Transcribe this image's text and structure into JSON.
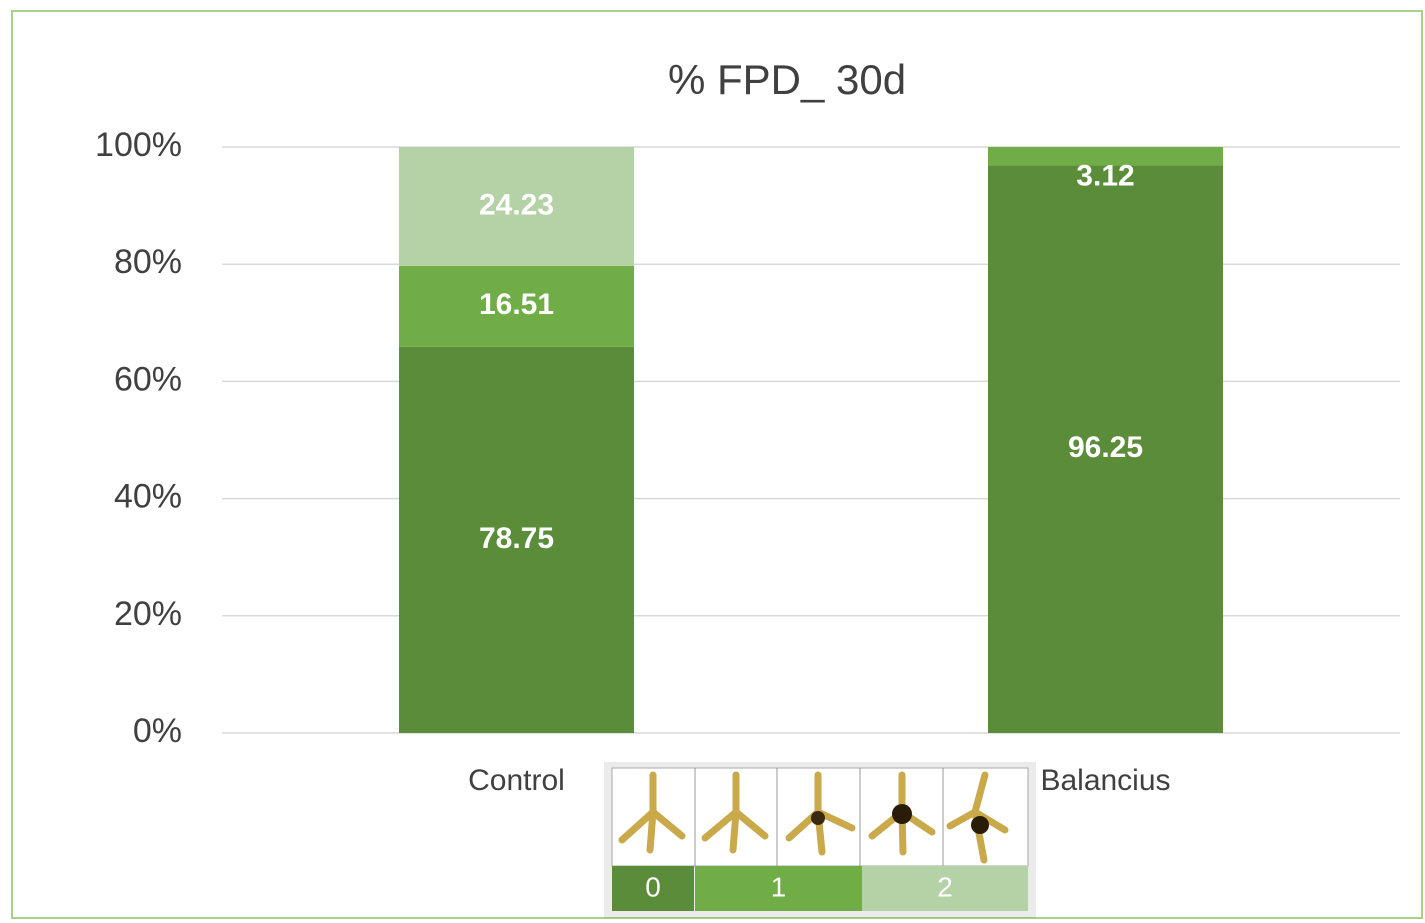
{
  "chart_data": {
    "type": "bar",
    "stacking": "percent",
    "title": "% FPD_ 30d",
    "categories": [
      "Control",
      "Balancius"
    ],
    "series": [
      {
        "name": "0",
        "color": "#5b8c3a",
        "values": [
          78.75,
          96.25
        ]
      },
      {
        "name": "1",
        "color": "#70ad47",
        "values": [
          16.51,
          3.12
        ]
      },
      {
        "name": "2",
        "color": "#b5d1a6",
        "values": [
          24.23,
          null
        ]
      }
    ],
    "ylim": [
      0,
      100
    ],
    "yticks": [
      {
        "value": 0,
        "label": "0%"
      },
      {
        "value": 20,
        "label": "20%"
      },
      {
        "value": 40,
        "label": "40%"
      },
      {
        "value": 60,
        "label": "60%"
      },
      {
        "value": 80,
        "label": "80%"
      },
      {
        "value": 100,
        "label": "100%"
      }
    ],
    "grid": true
  }
}
